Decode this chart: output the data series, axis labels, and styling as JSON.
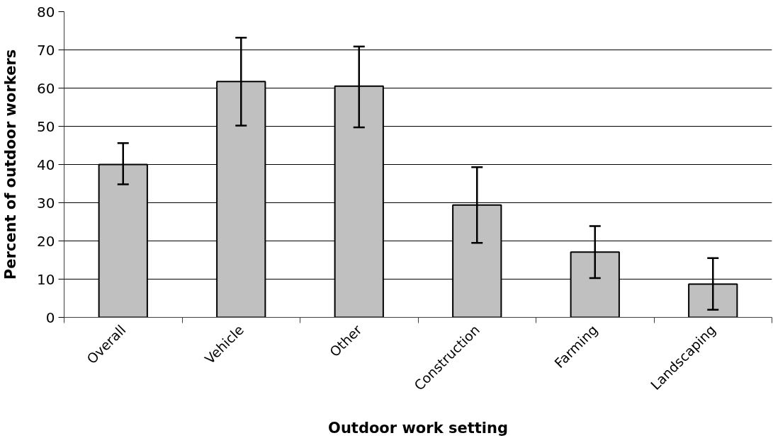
{
  "chart_data": {
    "type": "bar",
    "xlabel": "Outdoor work setting",
    "ylabel": "Percent of outdoor workers",
    "categories": [
      "Overall",
      "Vehicle",
      "Other",
      "Construction",
      "Farming",
      "Landscaping"
    ],
    "values": [
      40,
      61.7,
      60.5,
      29.4,
      17.1,
      8.7
    ],
    "errors": [
      [
        34.8,
        45.6
      ],
      [
        50.2,
        73.2
      ],
      [
        49.7,
        70.9
      ],
      [
        19.5,
        39.3
      ],
      [
        10.3,
        23.9
      ],
      [
        2.0,
        15.5
      ]
    ],
    "color": "#c0c0c0",
    "ylim": [
      0,
      80
    ],
    "yticks": [
      0,
      10,
      20,
      30,
      40,
      50,
      60,
      70,
      80
    ],
    "grid": "y"
  }
}
